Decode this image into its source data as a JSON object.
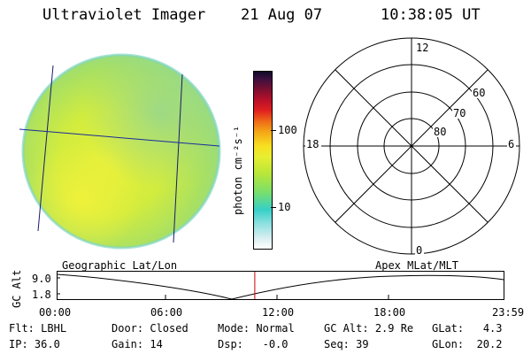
{
  "header": {
    "instrument": "Ultraviolet Imager",
    "date": "21 Aug 07",
    "time": "10:38:05 UT"
  },
  "colorbar": {
    "unit_label": "photon cm⁻²s⁻¹",
    "ticks": [
      "100",
      "10"
    ],
    "scale": "log"
  },
  "polar_plot": {
    "mlt_labels": {
      "top": "12",
      "bottom": "0",
      "left": "18",
      "right": "6"
    },
    "lat_labels": [
      "60",
      "70",
      "80"
    ]
  },
  "timeline": {
    "left_title": "Geographic Lat/Lon",
    "right_title": "Apex MLat/MLT",
    "y_label": "GC Alt",
    "y_ticks": [
      "9.0",
      "1.8"
    ],
    "x_ticks": [
      "00:00",
      "06:00",
      "12:00",
      "18:00",
      "23:59"
    ],
    "current_time_marker": "10:38:05",
    "marker_color": "#cc0000"
  },
  "status": {
    "filter_label": "Flt:",
    "filter_value": "LBHL",
    "door_label": "Door:",
    "door_value": "Closed",
    "mode_label": "Mode:",
    "mode_value": "Normal",
    "gcalt_label": "GC Alt:",
    "gcalt_value": "2.9 Re",
    "glat_label": "GLat:",
    "glat_value": "4.3",
    "ip_label": "IP:",
    "ip_value": "36.0",
    "gain_label": "Gain:",
    "gain_value": "14",
    "dsp_label": "Dsp:",
    "dsp_value": "-0.0",
    "seq_label": "Seq:",
    "seq_value": "39",
    "glon_label": "GLon:",
    "glon_value": "20.2"
  }
}
